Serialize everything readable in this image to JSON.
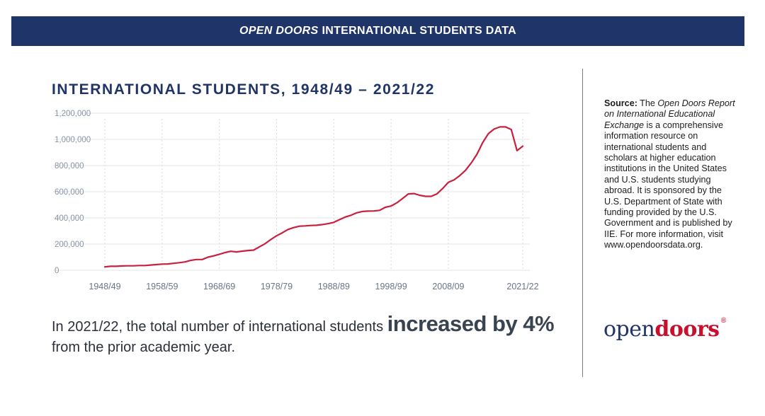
{
  "banner": {
    "italic": "OPEN DOORS",
    "rest": "INTERNATIONAL STUDENTS DATA"
  },
  "chart_data": {
    "type": "line",
    "title": "INTERNATIONAL STUDENTS, 1948/49 – 2021/22",
    "xlabel": "",
    "ylabel": "",
    "ylim": [
      0,
      1200000
    ],
    "yticks": [
      0,
      200000,
      400000,
      600000,
      800000,
      1000000,
      1200000
    ],
    "ytick_labels": [
      "0",
      "200,000",
      "400,000",
      "600,000",
      "800,000",
      "1,000,000",
      "1,200,000"
    ],
    "xticks": [
      1948,
      1958,
      1968,
      1978,
      1988,
      1998,
      2008,
      2021
    ],
    "xtick_labels": [
      "1948/49",
      "1958/59",
      "1968/69",
      "1978/79",
      "1988/89",
      "1998/99",
      "2008/09",
      "2021/22"
    ],
    "xlim": [
      1948,
      2021
    ],
    "color": "#c8203e",
    "series": [
      {
        "name": "International students",
        "x": [
          1948,
          1949,
          1950,
          1951,
          1952,
          1953,
          1954,
          1955,
          1956,
          1957,
          1958,
          1959,
          1960,
          1961,
          1962,
          1963,
          1964,
          1965,
          1966,
          1967,
          1968,
          1969,
          1970,
          1971,
          1972,
          1973,
          1974,
          1975,
          1976,
          1977,
          1978,
          1979,
          1980,
          1981,
          1982,
          1983,
          1984,
          1985,
          1986,
          1987,
          1988,
          1989,
          1990,
          1991,
          1992,
          1993,
          1994,
          1995,
          1996,
          1997,
          1998,
          1999,
          2000,
          2001,
          2002,
          2003,
          2004,
          2005,
          2006,
          2007,
          2008,
          2009,
          2010,
          2011,
          2012,
          2013,
          2014,
          2015,
          2016,
          2017,
          2018,
          2019,
          2020,
          2021
        ],
        "values": [
          26000,
          30000,
          30000,
          33000,
          34000,
          34000,
          36000,
          36000,
          40000,
          43000,
          47000,
          48000,
          53000,
          58000,
          64000,
          75000,
          82000,
          82000,
          100000,
          110000,
          122000,
          135000,
          145000,
          140000,
          146000,
          151000,
          154000,
          179000,
          203000,
          235000,
          264000,
          286000,
          312000,
          326000,
          337000,
          339000,
          342000,
          344000,
          349000,
          356000,
          366000,
          387000,
          407000,
          420000,
          439000,
          449000,
          452000,
          453000,
          458000,
          481000,
          491000,
          515000,
          548000,
          583000,
          586000,
          573000,
          565000,
          565000,
          583000,
          624000,
          672000,
          691000,
          723000,
          764000,
          820000,
          886000,
          975000,
          1044000,
          1079000,
          1095000,
          1095000,
          1075000,
          914000,
          948000
        ]
      }
    ]
  },
  "summary": {
    "prefix": "In 2021/22, the total number of international students ",
    "emphasis": "increased by 4%",
    "suffix": " from the prior academic year."
  },
  "source": {
    "label": "Source:",
    "pre": " The ",
    "report": "Open Doors Report on International Educational Exchange",
    "body": " is a comprehensive information resource on international students and scholars at higher education institutions in the United States and U.S. students studying abroad. It is sponsored by the U.S. Department of State with funding provided by the U.S. Government and is published by IIE. For more information, visit www.opendoorsdata.org."
  },
  "logo": {
    "open": "open",
    "doors": "doors",
    "reg": "®"
  }
}
